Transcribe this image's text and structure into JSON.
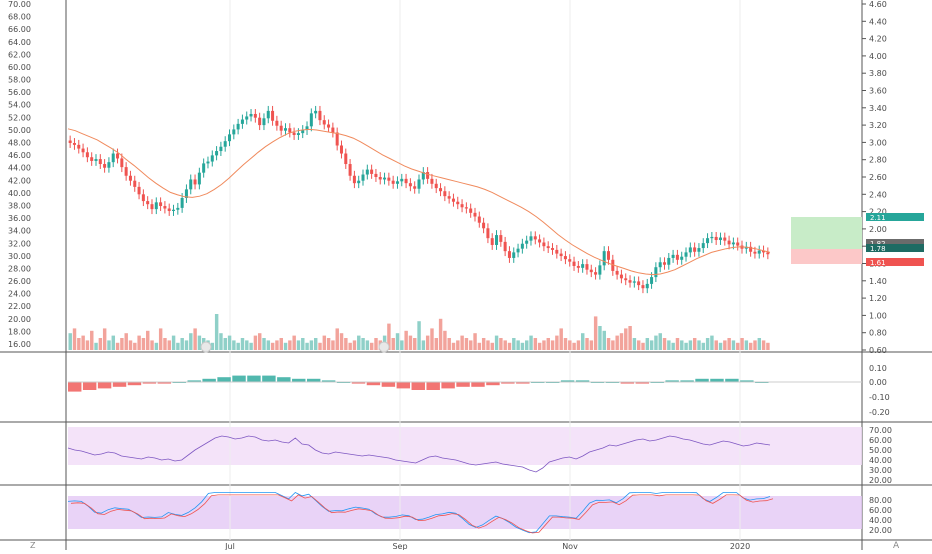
{
  "chart_data": {
    "type": "candlestick",
    "x_labels": [
      "Jul",
      "Sep",
      "Nov",
      "2020"
    ],
    "left_axis_ticks": [
      "70.00",
      "68.00",
      "66.00",
      "64.00",
      "62.00",
      "60.00",
      "58.00",
      "56.00",
      "54.00",
      "52.00",
      "50.00",
      "48.00",
      "46.00",
      "44.00",
      "42.00",
      "40.00",
      "38.00",
      "36.00",
      "34.00",
      "32.00",
      "30.00",
      "28.00",
      "26.00",
      "24.00",
      "22.00",
      "20.00",
      "18.00",
      "16.00"
    ],
    "right_axis_ticks": [
      "4.60",
      "4.40",
      "4.20",
      "4.00",
      "3.80",
      "3.60",
      "3.40",
      "3.20",
      "3.00",
      "2.80",
      "2.60",
      "2.40",
      "2.20",
      "2.00",
      "1.80",
      "1.60",
      "1.40",
      "1.20",
      "1.00",
      "0.80",
      "0.60"
    ],
    "price_badges": [
      {
        "value": "2.11",
        "color": "#26a69a"
      },
      {
        "value": "1.82",
        "color": "#6b6b6b"
      },
      {
        "value": "1.78",
        "color": "#1e6b63"
      },
      {
        "value": "1.61",
        "color": "#ef5350"
      }
    ],
    "macd_ticks": [
      "0.10",
      "0.00",
      "-0.10",
      "-0.20"
    ],
    "rsi_ticks": [
      "70.00",
      "60.00",
      "50.00",
      "40.00",
      "30.00",
      "20.00"
    ],
    "stoch_ticks": [
      "80.00",
      "60.00",
      "40.00",
      "20.00"
    ],
    "price_range": [
      15,
      71
    ],
    "close_series": [
      48.5,
      48.2,
      47.6,
      47.0,
      46.2,
      45.6,
      45.9,
      45.1,
      44.5,
      45.4,
      46.8,
      46.0,
      44.6,
      43.2,
      42.4,
      41.4,
      40.2,
      39.1,
      38.6,
      37.8,
      38.9,
      38.3,
      37.9,
      37.5,
      37.7,
      38.0,
      39.6,
      41.0,
      42.6,
      41.8,
      43.7,
      45.2,
      45.5,
      46.5,
      47.2,
      47.9,
      48.8,
      49.9,
      50.7,
      51.6,
      52.3,
      52.8,
      53.2,
      52.6,
      51.4,
      52.5,
      53.7,
      52.1,
      51.3,
      50.5,
      50.9,
      50.2,
      49.8,
      50.1,
      50.6,
      51.2,
      53.3,
      53.7,
      52.2,
      51.5,
      51.0,
      50.2,
      48.1,
      46.8,
      45.1,
      43.2,
      42.0,
      42.4,
      43.4,
      44.2,
      43.5,
      43.0,
      42.6,
      42.9,
      42.4,
      41.9,
      42.3,
      42.7,
      42.0,
      41.5,
      41.1,
      42.6,
      43.8,
      42.7,
      41.9,
      41.2,
      40.7,
      39.9,
      39.5,
      39.0,
      38.6,
      38.1,
      37.9,
      37.2,
      36.6,
      35.6,
      34.7,
      33.1,
      32.0,
      33.6,
      32.5,
      31.0,
      29.9,
      30.8,
      31.4,
      32.2,
      32.7,
      33.4,
      32.9,
      32.4,
      31.8,
      31.5,
      31.2,
      30.6,
      30.2,
      29.7,
      29.3,
      28.6,
      28.3,
      28.9,
      28.0,
      27.6,
      27.2,
      28.7,
      31.0,
      29.6,
      27.8,
      27.2,
      26.6,
      26.3,
      25.9,
      26.1,
      25.5,
      25.0,
      25.7,
      26.8,
      28.4,
      29.2,
      28.8,
      29.9,
      30.4,
      29.6,
      30.1,
      30.8,
      31.6,
      30.9,
      31.5,
      32.3,
      33.1,
      33.3,
      32.8,
      33.2,
      32.7,
      32.1,
      32.4,
      31.9,
      31.4,
      31.7,
      30.9,
      30.6,
      31.1,
      30.8,
      30.5
    ],
    "ma_series": [
      50.8,
      50.5,
      50.0,
      49.5,
      49.0,
      48.3,
      47.6,
      46.8,
      45.8,
      44.9,
      43.9,
      42.9,
      42.0,
      41.2,
      40.5,
      40.1,
      39.8,
      39.7,
      39.9,
      40.3,
      41.0,
      41.8,
      42.8,
      43.9,
      45.0,
      46.0,
      47.0,
      47.9,
      48.7,
      49.4,
      50.0,
      50.4,
      50.6,
      50.7,
      50.6,
      50.4,
      50.2,
      50.0,
      49.7,
      49.3,
      48.7,
      48.0,
      47.3,
      46.6,
      46.0,
      45.4,
      44.8,
      44.3,
      43.9,
      43.5,
      43.2,
      42.9,
      42.6,
      42.3,
      42.0,
      41.7,
      41.4,
      41.0,
      40.5,
      39.9,
      39.3,
      38.7,
      38.1,
      37.4,
      36.6,
      35.7,
      34.7,
      33.7,
      32.8,
      32.0,
      31.3,
      30.6,
      30.0,
      29.5,
      29.0,
      28.6,
      28.2,
      27.8,
      27.5,
      27.3,
      27.2,
      27.3,
      27.6,
      28.0,
      28.6,
      29.2,
      29.8,
      30.3,
      30.8,
      31.1,
      31.4,
      31.6,
      31.7,
      31.6,
      31.4,
      31.1,
      30.8
    ],
    "volume_series": [
      7,
      9,
      5,
      6,
      4,
      8,
      3,
      5,
      9,
      4,
      6,
      3,
      5,
      7,
      4,
      3,
      6,
      5,
      8,
      4,
      3,
      9,
      5,
      4,
      6,
      3,
      5,
      4,
      7,
      9,
      6,
      5,
      4,
      3,
      15,
      7,
      5,
      6,
      4,
      3,
      5,
      4,
      3,
      6,
      7,
      5,
      4,
      3,
      4,
      5,
      3,
      4,
      6,
      4,
      5,
      3,
      4,
      5,
      3,
      6,
      5,
      4,
      9,
      7,
      5,
      3,
      4,
      6,
      5,
      4,
      3,
      5,
      4,
      6,
      11,
      5,
      7,
      4,
      8,
      6,
      5,
      12,
      4,
      6,
      9,
      5,
      13,
      8,
      5,
      3,
      4,
      6,
      5,
      4,
      7,
      3,
      5,
      4,
      3,
      6,
      5,
      4,
      3,
      5,
      4,
      3,
      4,
      6,
      5,
      3,
      4,
      5,
      4,
      6,
      9,
      5,
      4,
      3,
      4,
      7,
      5,
      4,
      14,
      10,
      8,
      5,
      4,
      6,
      7,
      9,
      10,
      5,
      4,
      3,
      5,
      4,
      6,
      7,
      5,
      4,
      3,
      5,
      4,
      3,
      4,
      5,
      4,
      3,
      5,
      6,
      4,
      3,
      4,
      5,
      4,
      3,
      5,
      4,
      3,
      4,
      5,
      4,
      3
    ],
    "rsi_series": [
      52,
      50,
      49,
      47,
      45,
      46,
      48,
      47,
      44,
      43,
      42,
      41,
      43,
      42,
      40,
      41,
      39,
      40,
      45,
      50,
      54,
      58,
      62,
      64,
      63,
      61,
      62,
      64,
      63,
      60,
      59,
      60,
      58,
      57,
      62,
      56,
      55,
      50,
      47,
      46,
      48,
      47,
      46,
      45,
      44,
      45,
      44,
      43,
      42,
      40,
      39,
      38,
      37,
      40,
      43,
      44,
      42,
      41,
      40,
      38,
      36,
      35,
      36,
      37,
      38,
      36,
      35,
      34,
      33,
      30,
      28,
      32,
      38,
      40,
      42,
      43,
      41,
      44,
      48,
      50,
      52,
      55,
      54,
      56,
      58,
      60,
      61,
      59,
      60,
      62,
      64,
      63,
      61,
      60,
      58,
      56,
      55,
      57,
      59,
      58,
      56,
      54,
      55,
      57,
      56,
      55
    ],
    "macd_hist": [
      -0.06,
      -0.05,
      -0.04,
      -0.03,
      -0.02,
      -0.01,
      -0.01,
      0.0,
      0.01,
      0.02,
      0.03,
      0.04,
      0.04,
      0.04,
      0.03,
      0.02,
      0.02,
      0.01,
      0.0,
      -0.01,
      -0.02,
      -0.03,
      -0.04,
      -0.05,
      -0.05,
      -0.04,
      -0.03,
      -0.03,
      -0.02,
      -0.01,
      -0.01,
      0.0,
      0.0,
      0.01,
      0.01,
      0.0,
      0.0,
      -0.01,
      -0.01,
      0.0,
      0.01,
      0.01,
      0.02,
      0.02,
      0.02,
      0.01,
      0.0
    ]
  }
}
